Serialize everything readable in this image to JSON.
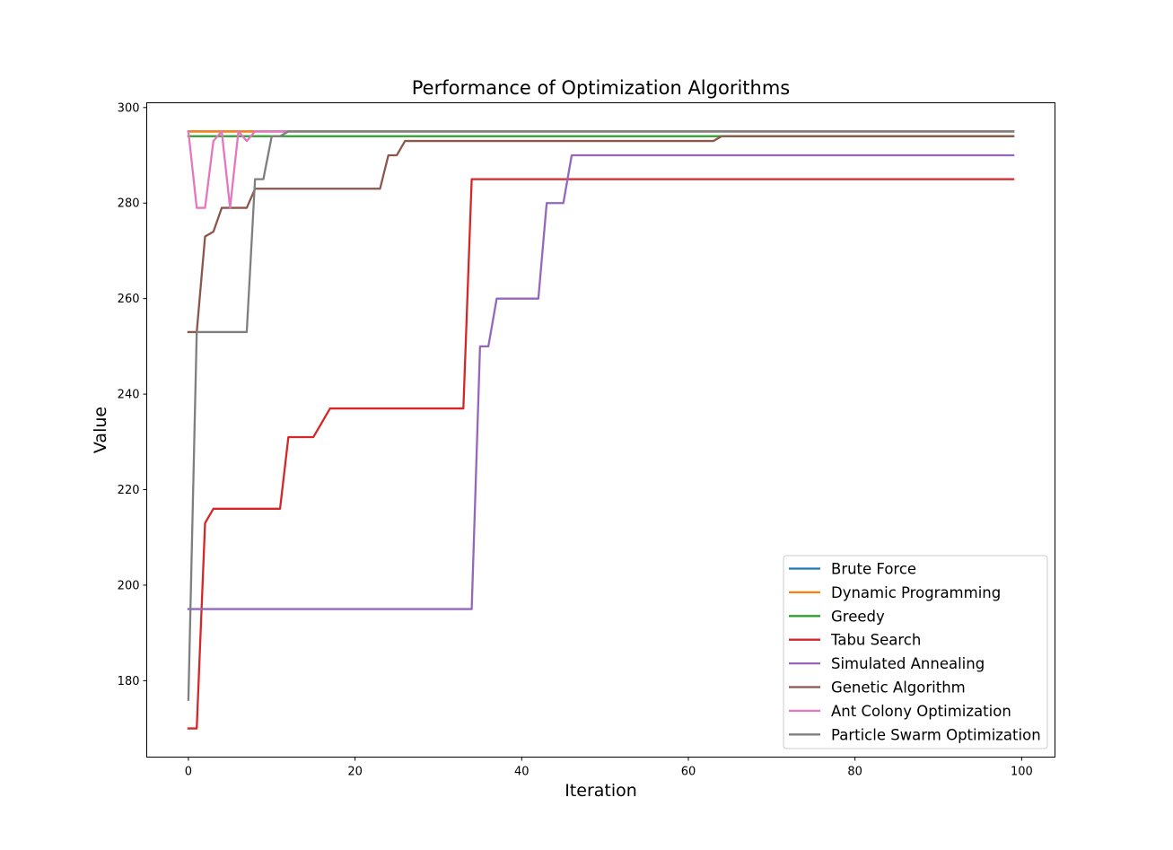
{
  "chart_data": {
    "type": "line",
    "title": "Performance of Optimization Algorithms",
    "xlabel": "Iteration",
    "ylabel": "Value",
    "xlim": [
      -5,
      104
    ],
    "ylim": [
      164,
      301
    ],
    "xticks": [
      0,
      20,
      40,
      60,
      80,
      100
    ],
    "yticks": [
      180,
      200,
      220,
      240,
      260,
      280,
      300
    ],
    "grid": false,
    "legend_position": "lower-right",
    "x_range": [
      0,
      99
    ],
    "series": [
      {
        "name": "Brute Force",
        "color": "#1f77b4",
        "steps": [
          [
            0,
            295
          ],
          [
            99,
            295
          ]
        ]
      },
      {
        "name": "Dynamic Programming",
        "color": "#ff7f0e",
        "steps": [
          [
            0,
            295
          ],
          [
            99,
            295
          ]
        ]
      },
      {
        "name": "Greedy",
        "color": "#2ca02c",
        "steps": [
          [
            0,
            294
          ],
          [
            99,
            294
          ]
        ]
      },
      {
        "name": "Tabu Search",
        "color": "#d62728",
        "steps": [
          [
            0,
            170
          ],
          [
            1,
            170
          ],
          [
            2,
            213
          ],
          [
            3,
            216
          ],
          [
            11,
            216
          ],
          [
            12,
            231
          ],
          [
            15,
            231
          ],
          [
            17,
            237
          ],
          [
            33,
            237
          ],
          [
            34,
            285
          ],
          [
            99,
            285
          ]
        ]
      },
      {
        "name": "Simulated Annealing",
        "color": "#9467bd",
        "steps": [
          [
            0,
            195
          ],
          [
            34,
            195
          ],
          [
            35,
            250
          ],
          [
            36,
            250
          ],
          [
            37,
            260
          ],
          [
            42,
            260
          ],
          [
            43,
            280
          ],
          [
            45,
            280
          ],
          [
            46,
            290
          ],
          [
            99,
            290
          ]
        ]
      },
      {
        "name": "Genetic Algorithm",
        "color": "#8c564b",
        "steps": [
          [
            0,
            253
          ],
          [
            1,
            253
          ],
          [
            2,
            273
          ],
          [
            3,
            274
          ],
          [
            4,
            279
          ],
          [
            7,
            279
          ],
          [
            8,
            283
          ],
          [
            23,
            283
          ],
          [
            24,
            290
          ],
          [
            25,
            290
          ],
          [
            26,
            293
          ],
          [
            63,
            293
          ],
          [
            64,
            294
          ],
          [
            99,
            294
          ]
        ]
      },
      {
        "name": "Ant Colony Optimization",
        "color": "#e377c2",
        "steps": [
          [
            0,
            295
          ],
          [
            1,
            279
          ],
          [
            2,
            279
          ],
          [
            3,
            293
          ],
          [
            4,
            295
          ],
          [
            5,
            279
          ],
          [
            6,
            295
          ],
          [
            7,
            293
          ],
          [
            8,
            295
          ],
          [
            12,
            295
          ]
        ]
      },
      {
        "name": "Particle Swarm Optimization",
        "color": "#7f7f7f",
        "steps": [
          [
            0,
            176
          ],
          [
            1,
            253
          ],
          [
            7,
            253
          ],
          [
            8,
            285
          ],
          [
            9,
            285
          ],
          [
            10,
            294
          ],
          [
            11,
            294
          ],
          [
            12,
            295
          ],
          [
            99,
            295
          ]
        ]
      }
    ]
  }
}
